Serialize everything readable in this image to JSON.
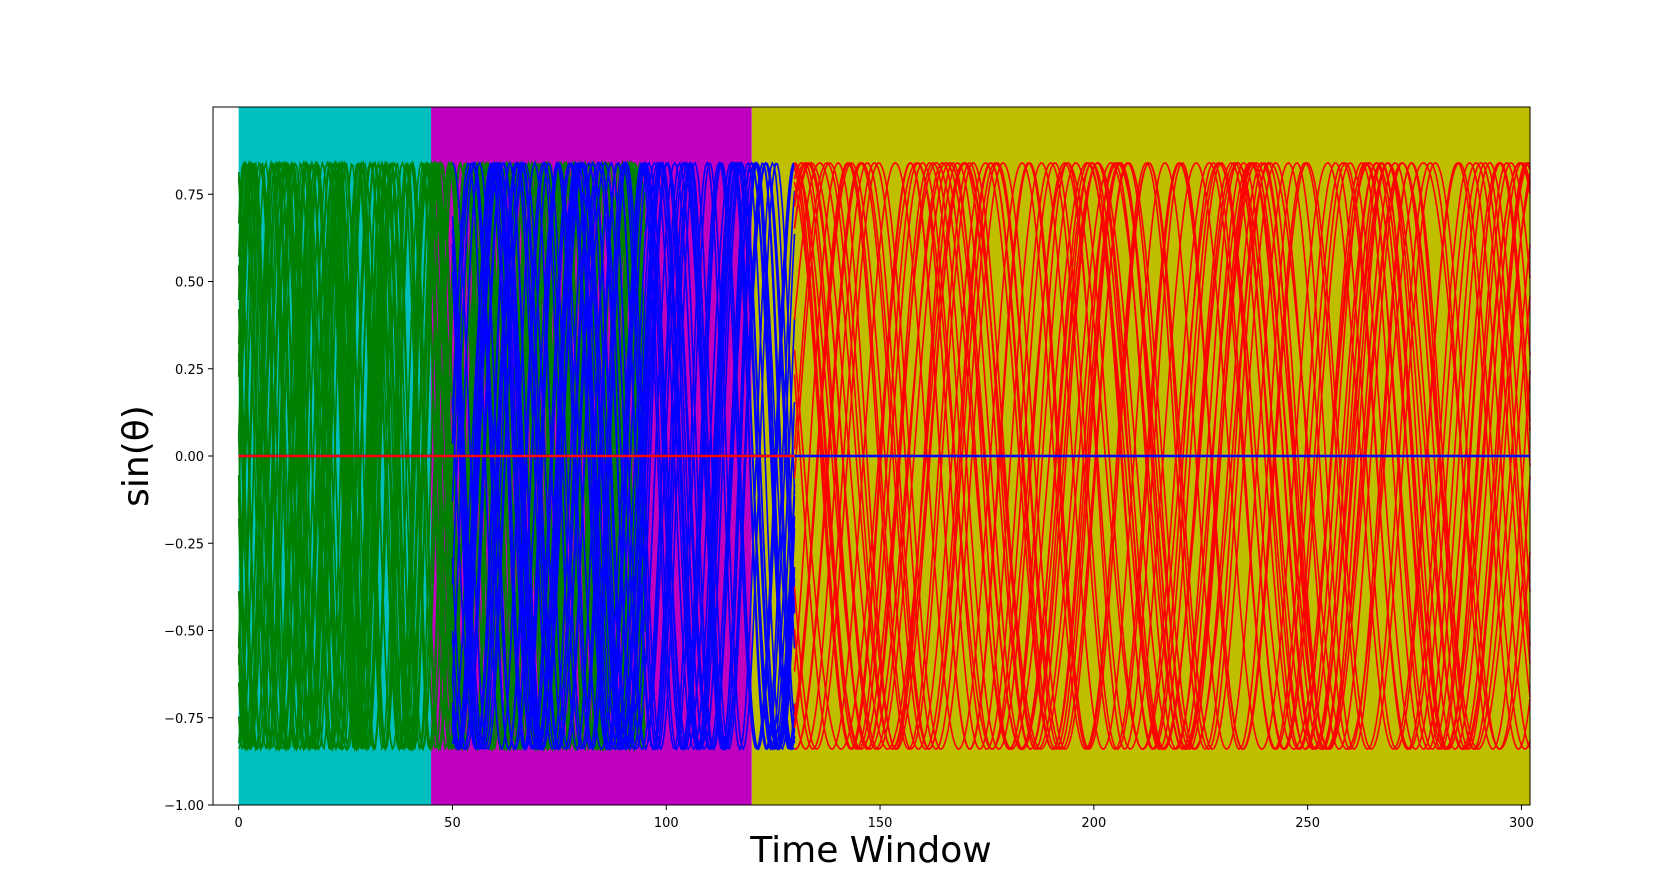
{
  "chart_data": {
    "type": "line",
    "title": "",
    "xlabel": "Time Window",
    "ylabel": "sin(θ)",
    "xlim": [
      -6,
      302
    ],
    "ylim": [
      -1.0,
      1.0
    ],
    "xticks": [
      0,
      50,
      100,
      150,
      200,
      250,
      300
    ],
    "xtick_labels": [
      "0",
      "50",
      "100",
      "150",
      "200",
      "250",
      "300"
    ],
    "yticks": [
      -1.0,
      -0.75,
      -0.5,
      -0.25,
      0.0,
      0.25,
      0.5,
      0.75
    ],
    "ytick_labels": [
      "−1.00",
      "−0.75",
      "−0.50",
      "−0.25",
      "0.00",
      "0.25",
      "0.50",
      "0.75"
    ],
    "grid": false,
    "regions": [
      {
        "x_start": 0,
        "x_end": 45,
        "color": "#00bfbf"
      },
      {
        "x_start": 45,
        "x_end": 120,
        "color": "#bf00bf"
      },
      {
        "x_start": 120,
        "x_end": 302,
        "color": "#bfbf00"
      }
    ],
    "amplitude": 0.84,
    "series": [
      {
        "color": "#008000",
        "x_range": [
          0,
          95
        ],
        "oscillation_period_approx": 12,
        "trace_count_approx": 30
      },
      {
        "color": "#0000ff",
        "x_range": [
          50,
          130
        ],
        "oscillation_period_approx": 18,
        "trace_count_approx": 25
      },
      {
        "color": "#ff0000",
        "x_range": [
          130,
          302
        ],
        "oscillation_period_approx": 31.5,
        "trace_count_approx": 25
      },
      {
        "color": "#0000ff",
        "x_range": [
          0,
          302
        ],
        "constant_y": 0.0
      },
      {
        "color": "#ff0000",
        "x_range": [
          0,
          130
        ],
        "constant_y": 0.0
      }
    ]
  }
}
